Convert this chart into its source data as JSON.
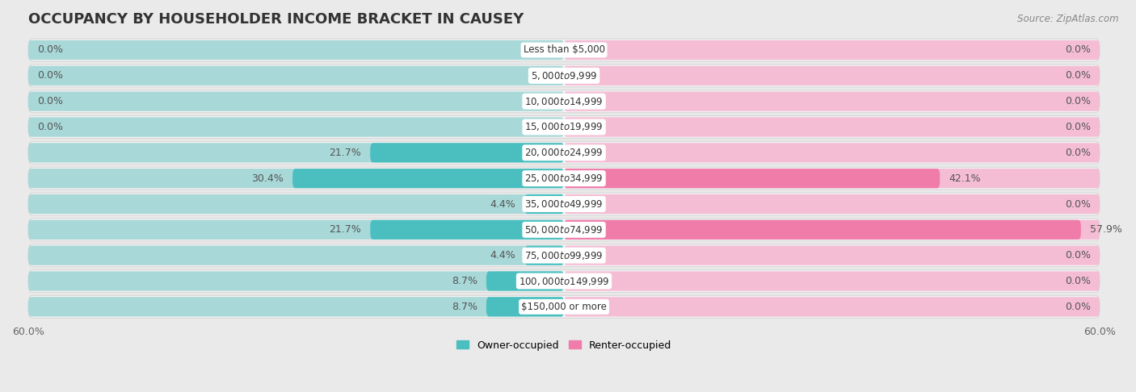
{
  "title": "OCCUPANCY BY HOUSEHOLDER INCOME BRACKET IN CAUSEY",
  "source": "Source: ZipAtlas.com",
  "categories": [
    "Less than $5,000",
    "$5,000 to $9,999",
    "$10,000 to $14,999",
    "$15,000 to $19,999",
    "$20,000 to $24,999",
    "$25,000 to $34,999",
    "$35,000 to $49,999",
    "$50,000 to $74,999",
    "$75,000 to $99,999",
    "$100,000 to $149,999",
    "$150,000 or more"
  ],
  "owner_values": [
    0.0,
    0.0,
    0.0,
    0.0,
    21.7,
    30.4,
    4.4,
    21.7,
    4.4,
    8.7,
    8.7
  ],
  "renter_values": [
    0.0,
    0.0,
    0.0,
    0.0,
    0.0,
    42.1,
    0.0,
    57.9,
    0.0,
    0.0,
    0.0
  ],
  "owner_color": "#4bbfbf",
  "owner_color_light": "#a8d8d8",
  "renter_color": "#f07caa",
  "renter_color_light": "#f5bdd4",
  "bg_color": "#eaeaea",
  "row_bg_color": "#f2f2f2",
  "row_border_color": "#d8d8d8",
  "label_color": "#555555",
  "title_color": "#333333",
  "x_min": -60.0,
  "x_max": 60.0,
  "label_fontsize": 8.5,
  "title_fontsize": 13,
  "cat_fontsize": 8.5,
  "legend_fontsize": 9,
  "value_fontsize": 9
}
